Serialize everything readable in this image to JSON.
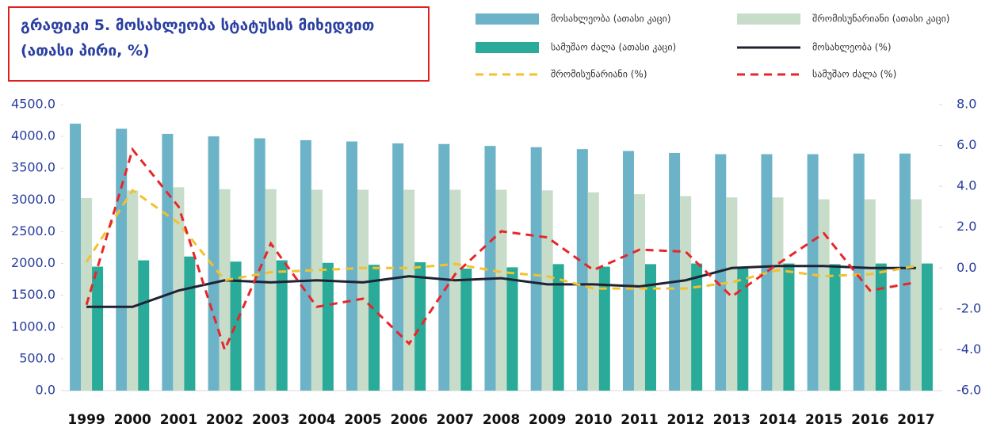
{
  "chart_data": {
    "type": "bar",
    "title": "გრაფიკი 5. მოსახლეობა სტატუსის მიხედვით (ათასი პირი, %)",
    "categories": [
      "1999",
      "2000",
      "2001",
      "2002",
      "2003",
      "2004",
      "2005",
      "2006",
      "2007",
      "2008",
      "2009",
      "2010",
      "2011",
      "2012",
      "2013",
      "2014",
      "2015",
      "2016",
      "2017"
    ],
    "series": [
      {
        "name": "მოსახლეობა (ათასი კაცი)",
        "type": "bar",
        "color": "#6db3c8",
        "values": [
          4200,
          4120,
          4040,
          4000,
          3970,
          3940,
          3920,
          3890,
          3880,
          3850,
          3830,
          3800,
          3770,
          3740,
          3720,
          3720,
          3720,
          3730,
          3730
        ]
      },
      {
        "name": "შრომისუნარიანი (ათასი კაცი)",
        "type": "bar",
        "color": "#c7dcc9",
        "values": [
          3030,
          3150,
          3200,
          3170,
          3170,
          3160,
          3160,
          3160,
          3160,
          3160,
          3150,
          3120,
          3090,
          3060,
          3040,
          3040,
          3010,
          3010,
          3010
        ]
      },
      {
        "name": "სამუშაო ძალა (ათასი კაცი)",
        "type": "bar",
        "color": "#2aaa99",
        "values": [
          1950,
          2050,
          2110,
          2030,
          2050,
          2010,
          1980,
          2020,
          1920,
          1940,
          1990,
          1950,
          1990,
          2000,
          1920,
          2000,
          1990,
          2000,
          2000
        ]
      },
      {
        "name": "მოსახლეობა (%)",
        "type": "line",
        "axis": "y2",
        "color": "#1f2233",
        "dash": "solid",
        "values": [
          -1.9,
          -1.9,
          -1.1,
          -0.6,
          -0.7,
          -0.6,
          -0.7,
          -0.4,
          -0.6,
          -0.5,
          -0.8,
          -0.8,
          -0.9,
          -0.6,
          0.0,
          0.1,
          0.1,
          0.0,
          0.0
        ]
      },
      {
        "name": "შრომისუნარიანი (%)",
        "type": "line",
        "axis": "y2",
        "color": "#f2c12e",
        "dash": "dashed",
        "values": [
          0.3,
          3.8,
          2.2,
          -0.6,
          -0.2,
          -0.1,
          0.0,
          0.0,
          0.2,
          -0.2,
          -0.4,
          -1.0,
          -1.0,
          -1.0,
          -0.7,
          -0.1,
          -0.4,
          -0.3,
          0.1
        ]
      },
      {
        "name": "სამუშაო ძალა (%)",
        "type": "line",
        "axis": "y2",
        "color": "#e8262a",
        "dash": "dashed",
        "values": [
          -1.8,
          5.8,
          3.0,
          -4.0,
          1.2,
          -1.9,
          -1.5,
          -3.7,
          -0.3,
          1.8,
          1.5,
          -0.1,
          0.9,
          0.8,
          -1.4,
          0.2,
          1.7,
          -1.1,
          -0.7
        ]
      }
    ],
    "ylim": [
      0,
      4500
    ],
    "yticks": [
      {
        "value": 0,
        "label": "0.0"
      },
      {
        "value": 500,
        "label": "500.0"
      },
      {
        "value": 1000,
        "label": "1000.0"
      },
      {
        "value": 1500,
        "label": "1500.0"
      },
      {
        "value": 2000,
        "label": "2000.0"
      },
      {
        "value": 2500,
        "label": "2500.0"
      },
      {
        "value": 3000,
        "label": "3000.0"
      },
      {
        "value": 3500,
        "label": "3500.0"
      },
      {
        "value": 4000,
        "label": "4000.0"
      },
      {
        "value": 4500,
        "label": "4500.0"
      }
    ],
    "y2lim": [
      -6,
      8
    ],
    "y2ticks": [
      {
        "value": -6,
        "label": "-6.0"
      },
      {
        "value": -4,
        "label": "-4.0"
      },
      {
        "value": -2,
        "label": "-2.0"
      },
      {
        "value": 0,
        "label": "0.0"
      },
      {
        "value": 2,
        "label": "2.0"
      },
      {
        "value": 4,
        "label": "4.0"
      },
      {
        "value": 6,
        "label": "6.0"
      },
      {
        "value": 8,
        "label": "8.0"
      }
    ],
    "grid": false
  }
}
